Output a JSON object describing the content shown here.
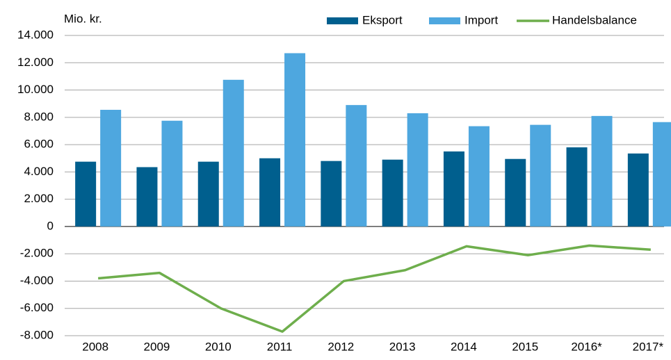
{
  "chart_data": {
    "type": "bar_line",
    "y_label": "Mio. kr.",
    "categories": [
      "2008",
      "2009",
      "2010",
      "2011",
      "2012",
      "2013",
      "2014",
      "2015",
      "2016*",
      "2017*"
    ],
    "series": [
      {
        "name": "Eksport",
        "type": "bar",
        "color": "#005f8e",
        "values": [
          4750,
          4350,
          4750,
          5000,
          4800,
          4900,
          5500,
          4950,
          5800,
          5350
        ]
      },
      {
        "name": "Import",
        "type": "bar",
        "color": "#4ea7df",
        "values": [
          8550,
          7750,
          10750,
          12700,
          8900,
          8300,
          7350,
          7450,
          8100,
          7650
        ]
      },
      {
        "name": "Handelsbalance",
        "type": "line",
        "color": "#6eae4c",
        "values": [
          -3800,
          -3400,
          -6000,
          -7700,
          -4000,
          -3200,
          -1450,
          -2100,
          -1400,
          -1700
        ]
      }
    ],
    "ylim": [
      -8000,
      14000
    ],
    "yticks": [
      {
        "value": 14000,
        "label": "14.000"
      },
      {
        "value": 12000,
        "label": "12.000"
      },
      {
        "value": 10000,
        "label": "10.000"
      },
      {
        "value": 8000,
        "label": "8.000"
      },
      {
        "value": 6000,
        "label": "6.000"
      },
      {
        "value": 4000,
        "label": "4.000"
      },
      {
        "value": 2000,
        "label": "2.000"
      },
      0,
      {
        "value": -2000,
        "label": "-2.000"
      },
      {
        "value": -4000,
        "label": "-4.000"
      },
      {
        "value": -6000,
        "label": "-6.000"
      },
      {
        "value": -8000,
        "label": "-8.000"
      }
    ],
    "grid": true,
    "legend": "top-right"
  }
}
